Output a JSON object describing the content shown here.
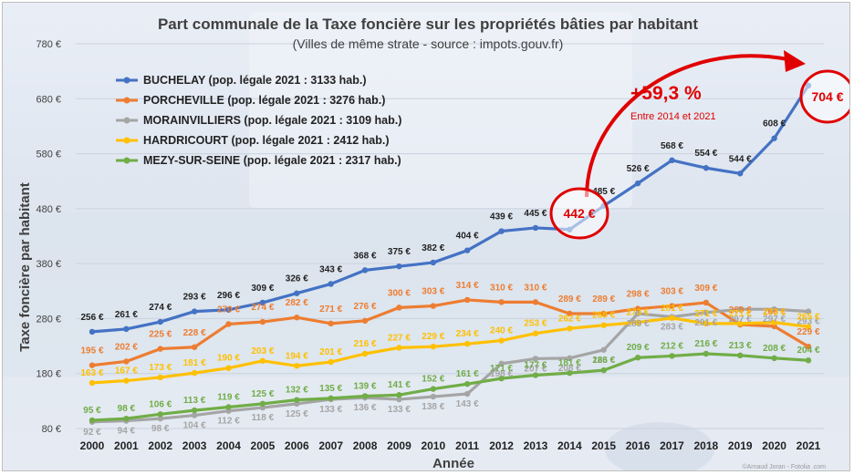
{
  "chart_data": {
    "type": "line",
    "title": "Part communale de la Taxe foncière sur les propriétés bâties par habitant",
    "subtitle": "(Villes de même strate - source : impots.gouv.fr)",
    "xlabel": "Année",
    "ylabel": "Taxe foncière par habitant",
    "ylim": [
      80,
      780
    ],
    "yticks": [
      80,
      180,
      280,
      380,
      480,
      580,
      680,
      780
    ],
    "ytick_labels": [
      "80 €",
      "180 €",
      "280 €",
      "380 €",
      "480 €",
      "580 €",
      "680 €",
      "780 €"
    ],
    "categories": [
      "2000",
      "2001",
      "2002",
      "2003",
      "2004",
      "2005",
      "2006",
      "2007",
      "2008",
      "2009",
      "2010",
      "2011",
      "2012",
      "2013",
      "2014",
      "2015",
      "2016",
      "2017",
      "2018",
      "2019",
      "2020",
      "2021"
    ],
    "legend_position": "top-left",
    "grid": true,
    "series": [
      {
        "name": "BUCHELAY (pop. légale 2021 : 3133 hab.)",
        "color": "#4472c4",
        "values": [
          256,
          261,
          274,
          293,
          296,
          309,
          326,
          343,
          368,
          375,
          382,
          404,
          439,
          445,
          442,
          485,
          526,
          568,
          554,
          544,
          608,
          704
        ],
        "labels": [
          "256 €",
          "261 €",
          "274 €",
          "293 €",
          "296 €",
          "309 €",
          "326 €",
          "343 €",
          "368 €",
          "375 €",
          "382 €",
          "404 €",
          "439 €",
          "445 €",
          "",
          "485 €",
          "526 €",
          "568 €",
          "554 €",
          "544 €",
          "608 €",
          ""
        ]
      },
      {
        "name": "PORCHEVILLE (pop. légale 2021 : 3276 hab.)",
        "color": "#ed7d31",
        "values": [
          195,
          202,
          225,
          228,
          270,
          274,
          282,
          271,
          276,
          300,
          303,
          314,
          310,
          310,
          289,
          289,
          298,
          303,
          309,
          269,
          266,
          229
        ],
        "labels": [
          "195 €",
          "202 €",
          "225 €",
          "228 €",
          "270 €",
          "274 €",
          "282 €",
          "271 €",
          "276 €",
          "300 €",
          "303 €",
          "314 €",
          "310 €",
          "310 €",
          "289 €",
          "289 €",
          "298 €",
          "303 €",
          "309 €",
          "269 €",
          "266 €",
          "229 €"
        ]
      },
      {
        "name": "MORAINVILLIERS (pop. légale 2021 : 3109 hab.)",
        "color": "#a5a5a5",
        "values": [
          92,
          94,
          98,
          104,
          112,
          118,
          125,
          133,
          136,
          133,
          138,
          143,
          198,
          207,
          208,
          223,
          289,
          283,
          291,
          297,
          297,
          293
        ],
        "labels": [
          "92 €",
          "94 €",
          "98 €",
          "104 €",
          "112 €",
          "118 €",
          "125 €",
          "133 €",
          "136 €",
          "133 €",
          "138 €",
          "143 €",
          "198 €",
          "207 €",
          "208 €",
          "223 €",
          "289 €",
          "283 €",
          "291 €",
          "297 €",
          "297 €",
          "293 €"
        ]
      },
      {
        "name": "HARDRICOURT (pop. légale 2021 : 2412 hab.)",
        "color": "#ffc000",
        "values": [
          163,
          167,
          173,
          181,
          190,
          203,
          194,
          201,
          216,
          227,
          229,
          234,
          240,
          253,
          262,
          268,
          273,
          281,
          271,
          271,
          273,
          265
        ],
        "labels": [
          "163 €",
          "167 €",
          "173 €",
          "181 €",
          "190 €",
          "203 €",
          "194 €",
          "201 €",
          "216 €",
          "227 €",
          "229 €",
          "234 €",
          "240 €",
          "253 €",
          "262 €",
          "268 €",
          "273 €",
          "281 €",
          "271 €",
          "271 €",
          "273 €",
          "265 €"
        ]
      },
      {
        "name": "MEZY-SUR-SEINE (pop. légale 2021 : 2317 hab.)",
        "color": "#70ad47",
        "values": [
          95,
          98,
          106,
          113,
          119,
          125,
          132,
          135,
          139,
          141,
          152,
          161,
          171,
          177,
          181,
          186,
          209,
          212,
          216,
          213,
          208,
          204
        ],
        "labels": [
          "95 €",
          "98 €",
          "106 €",
          "113 €",
          "119 €",
          "125 €",
          "132 €",
          "135 €",
          "139 €",
          "141 €",
          "152 €",
          "161 €",
          "171 €",
          "177 €",
          "181 €",
          "186 €",
          "209 €",
          "212 €",
          "216 €",
          "213 €",
          "208 €",
          "204 €"
        ]
      }
    ],
    "annotations": {
      "growth": "+59,3 %",
      "growth_period": "Entre 2014 et 2021",
      "start_label": "442 €",
      "end_label": "704 €",
      "accent_color": "#e00000"
    },
    "credit": "©Arnaud Joran - Fotolia .com"
  }
}
